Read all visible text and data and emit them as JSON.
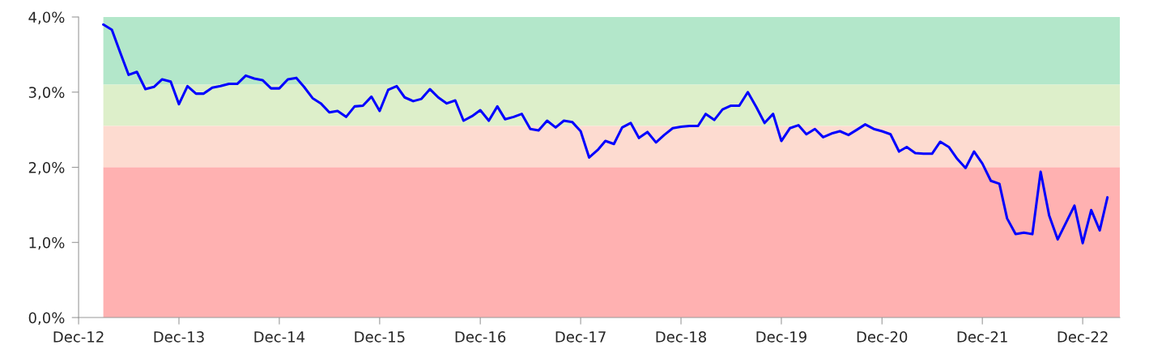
{
  "chart_data": {
    "type": "line",
    "x": [
      "2013-03",
      "2013-04",
      "2013-05",
      "2013-06",
      "2013-07",
      "2013-08",
      "2013-09",
      "2013-10",
      "2013-11",
      "2013-12",
      "2014-01",
      "2014-02",
      "2014-03",
      "2014-04",
      "2014-05",
      "2014-06",
      "2014-07",
      "2014-08",
      "2014-09",
      "2014-10",
      "2014-11",
      "2014-12",
      "2015-01",
      "2015-02",
      "2015-03",
      "2015-04",
      "2015-05",
      "2015-06",
      "2015-07",
      "2015-08",
      "2015-09",
      "2015-10",
      "2015-11",
      "2015-12",
      "2016-01",
      "2016-02",
      "2016-03",
      "2016-04",
      "2016-05",
      "2016-06",
      "2016-07",
      "2016-08",
      "2016-09",
      "2016-10",
      "2016-11",
      "2016-12",
      "2017-01",
      "2017-02",
      "2017-03",
      "2017-04",
      "2017-05",
      "2017-06",
      "2017-07",
      "2017-08",
      "2017-09",
      "2017-10",
      "2017-11",
      "2017-12",
      "2018-01",
      "2018-02",
      "2018-03",
      "2018-04",
      "2018-05",
      "2018-06",
      "2018-07",
      "2018-08",
      "2018-09",
      "2018-10",
      "2018-11",
      "2018-12",
      "2019-01",
      "2019-02",
      "2019-03",
      "2019-04",
      "2019-05",
      "2019-06",
      "2019-07",
      "2019-08",
      "2019-09",
      "2019-10",
      "2019-11",
      "2019-12",
      "2020-01",
      "2020-02",
      "2020-03",
      "2020-04",
      "2020-05",
      "2020-06",
      "2020-07",
      "2020-08",
      "2020-09",
      "2020-10",
      "2020-11",
      "2020-12",
      "2021-01",
      "2021-02",
      "2021-03",
      "2021-04",
      "2021-05",
      "2021-06",
      "2021-07",
      "2021-08",
      "2021-09",
      "2021-10",
      "2021-11",
      "2021-12",
      "2022-01",
      "2022-02",
      "2022-03",
      "2022-04",
      "2022-05",
      "2022-06",
      "2022-07",
      "2022-08",
      "2022-09",
      "2022-10",
      "2022-11",
      "2022-12",
      "2023-01",
      "2023-02",
      "2023-03"
    ],
    "series": [
      {
        "color": "#0000ff",
        "values": [
          3.9,
          3.83,
          3.53,
          3.23,
          3.27,
          3.04,
          3.07,
          3.17,
          3.14,
          2.84,
          3.08,
          2.98,
          2.98,
          3.06,
          3.08,
          3.11,
          3.11,
          3.22,
          3.18,
          3.16,
          3.05,
          3.05,
          3.17,
          3.19,
          3.07,
          2.92,
          2.85,
          2.73,
          2.75,
          2.67,
          2.81,
          2.82,
          2.94,
          2.75,
          3.03,
          3.08,
          2.93,
          2.88,
          2.91,
          3.04,
          2.93,
          2.85,
          2.89,
          2.62,
          2.68,
          2.76,
          2.62,
          2.81,
          2.64,
          2.67,
          2.71,
          2.51,
          2.49,
          2.62,
          2.53,
          2.62,
          2.6,
          2.48,
          2.13,
          2.23,
          2.35,
          2.31,
          2.53,
          2.59,
          2.39,
          2.47,
          2.33,
          2.43,
          2.52,
          2.54,
          2.55,
          2.55,
          2.71,
          2.63,
          2.77,
          2.82,
          2.82,
          3.0,
          2.8,
          2.59,
          2.71,
          2.35,
          2.52,
          2.56,
          2.44,
          2.51,
          2.4,
          2.45,
          2.48,
          2.43,
          2.5,
          2.57,
          2.51,
          2.48,
          2.44,
          2.21,
          2.27,
          2.19,
          2.18,
          2.18,
          2.34,
          2.27,
          2.11,
          1.99,
          2.21,
          2.05,
          1.82,
          1.78,
          1.32,
          1.11,
          1.13,
          1.11,
          1.94,
          1.36,
          1.04,
          1.26,
          1.49,
          0.99,
          1.43,
          1.16,
          1.6
        ]
      }
    ],
    "xlim": [
      "2012-12",
      "2023-04-15"
    ],
    "xticks": [
      {
        "value": "2012-12",
        "label": "Dec-12"
      },
      {
        "value": "2013-12",
        "label": "Dec-13"
      },
      {
        "value": "2014-12",
        "label": "Dec-14"
      },
      {
        "value": "2015-12",
        "label": "Dec-15"
      },
      {
        "value": "2016-12",
        "label": "Dec-16"
      },
      {
        "value": "2017-12",
        "label": "Dec-17"
      },
      {
        "value": "2018-12",
        "label": "Dec-18"
      },
      {
        "value": "2019-12",
        "label": "Dec-19"
      },
      {
        "value": "2020-12",
        "label": "Dec-20"
      },
      {
        "value": "2021-12",
        "label": "Dec-21"
      },
      {
        "value": "2022-12",
        "label": "Dec-22"
      }
    ],
    "ylim": [
      0,
      4
    ],
    "yticks": [
      {
        "value": 0,
        "label": "0,0%"
      },
      {
        "value": 1,
        "label": "1,0%"
      },
      {
        "value": 2,
        "label": "2,0%"
      },
      {
        "value": 3,
        "label": "3,0%"
      },
      {
        "value": 4,
        "label": "4,0%"
      }
    ],
    "bands": [
      {
        "axis": "y",
        "from": 3.1,
        "to": 4.0,
        "color": "#b3e7ca"
      },
      {
        "axis": "y",
        "from": 2.55,
        "to": 3.1,
        "color": "#ddefca"
      },
      {
        "axis": "y",
        "from": 2.0,
        "to": 2.55,
        "color": "#fddbd0"
      },
      {
        "axis": "y",
        "from": 0,
        "to": 2.0,
        "color": "#ffb1b1"
      }
    ],
    "grid": false,
    "legend": false,
    "marker": "none",
    "line_style": "solid"
  }
}
